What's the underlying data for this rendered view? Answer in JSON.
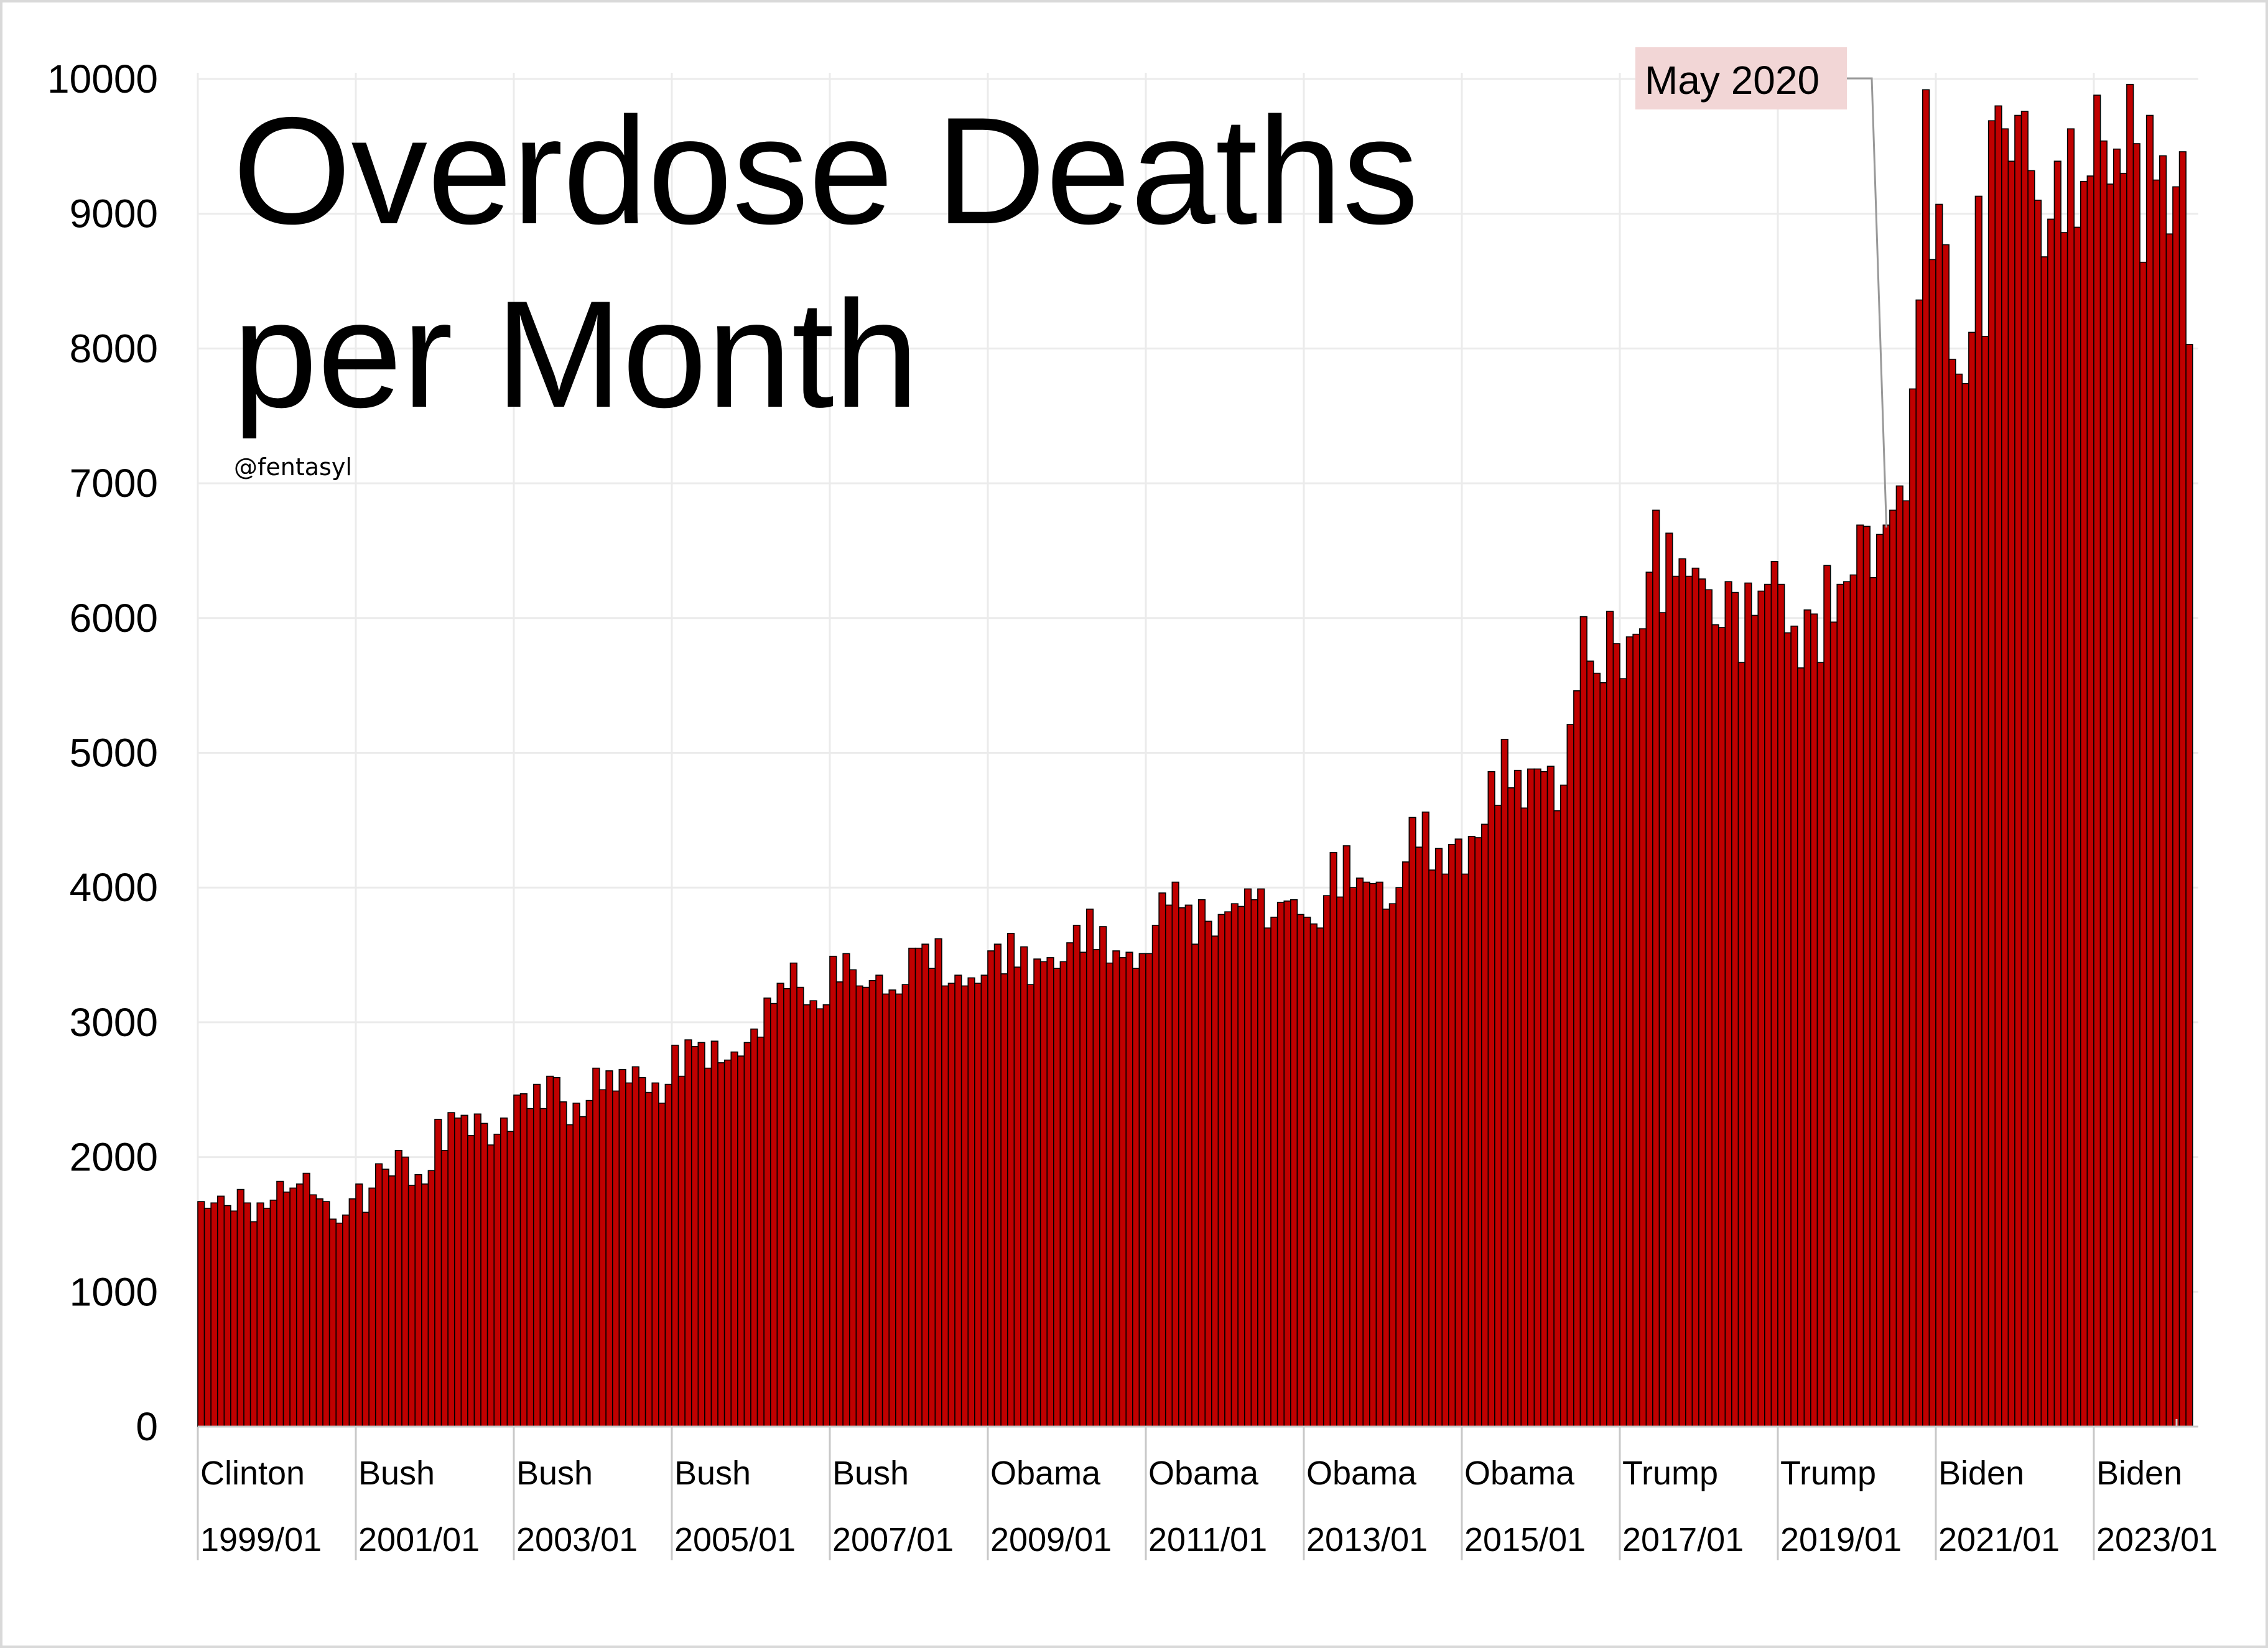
{
  "chart_data": {
    "type": "bar",
    "title_lines": [
      "Overdose Deaths",
      "per Month"
    ],
    "handle": "@fentasyl",
    "ylim": [
      0,
      10000
    ],
    "y_ticks": [
      "0",
      "1000",
      "2000",
      "3000",
      "4000",
      "5000",
      "6000",
      "7000",
      "8000",
      "9000",
      "10000"
    ],
    "grid": true,
    "x_start": "1999/01",
    "x_tick_labels": [
      "1999/01",
      "2001/01",
      "2003/01",
      "2005/01",
      "2007/01",
      "2009/01",
      "2011/01",
      "2013/01",
      "2015/01",
      "2017/01",
      "2019/01",
      "2021/01",
      "2023/01"
    ],
    "x_period_labels": [
      "Clinton",
      "Bush",
      "Bush",
      "Bush",
      "Bush",
      "Obama",
      "Obama",
      "Obama",
      "Obama",
      "Trump",
      "Trump",
      "Biden",
      "Biden"
    ],
    "annotation": {
      "label": "May 2020",
      "category": "2020/05"
    },
    "colors": {
      "bar": "#c00000",
      "bar_edge": "#000000",
      "grid": "#ebebeb",
      "annotation_bg": "#f2d6d6"
    },
    "values": [
      1670,
      1620,
      1660,
      1710,
      1640,
      1600,
      1760,
      1660,
      1520,
      1660,
      1620,
      1680,
      1820,
      1740,
      1770,
      1800,
      1880,
      1720,
      1690,
      1670,
      1540,
      1510,
      1570,
      1690,
      1800,
      1590,
      1770,
      1950,
      1910,
      1860,
      2050,
      2000,
      1790,
      1870,
      1800,
      1900,
      2280,
      2050,
      2330,
      2290,
      2310,
      2160,
      2320,
      2250,
      2090,
      2170,
      2290,
      2190,
      2460,
      2470,
      2360,
      2540,
      2360,
      2600,
      2590,
      2410,
      2240,
      2400,
      2300,
      2420,
      2660,
      2500,
      2640,
      2490,
      2650,
      2550,
      2670,
      2590,
      2480,
      2550,
      2400,
      2540,
      2830,
      2600,
      2870,
      2820,
      2850,
      2660,
      2860,
      2700,
      2720,
      2780,
      2750,
      2850,
      2950,
      2890,
      3180,
      3140,
      3290,
      3250,
      3440,
      3260,
      3130,
      3160,
      3100,
      3130,
      3490,
      3300,
      3510,
      3390,
      3270,
      3260,
      3310,
      3350,
      3210,
      3240,
      3210,
      3280,
      3550,
      3550,
      3580,
      3400,
      3620,
      3270,
      3290,
      3350,
      3270,
      3330,
      3290,
      3350,
      3530,
      3580,
      3360,
      3660,
      3410,
      3560,
      3280,
      3470,
      3450,
      3480,
      3400,
      3450,
      3590,
      3720,
      3520,
      3840,
      3540,
      3710,
      3440,
      3530,
      3480,
      3520,
      3400,
      3510,
      3510,
      3720,
      3960,
      3870,
      4040,
      3850,
      3870,
      3580,
      3910,
      3750,
      3640,
      3800,
      3820,
      3880,
      3860,
      3990,
      3910,
      3990,
      3700,
      3780,
      3890,
      3900,
      3910,
      3800,
      3780,
      3730,
      3700,
      3940,
      4260,
      3930,
      4310,
      4000,
      4070,
      4040,
      4030,
      4040,
      3840,
      3880,
      4000,
      4190,
      4520,
      4300,
      4560,
      4130,
      4290,
      4100,
      4320,
      4360,
      4100,
      4380,
      4370,
      4470,
      4860,
      4610,
      5100,
      4740,
      4870,
      4590,
      4880,
      4880,
      4860,
      4900,
      4570,
      4760,
      5210,
      5460,
      6010,
      5680,
      5590,
      5520,
      6050,
      5810,
      5550,
      5860,
      5880,
      5920,
      6340,
      6800,
      6040,
      6630,
      6310,
      6440,
      6310,
      6370,
      6290,
      6210,
      5950,
      5930,
      6270,
      6190,
      5670,
      6260,
      6020,
      6200,
      6250,
      6420,
      6250,
      5890,
      5940,
      5630,
      6060,
      6030,
      5670,
      6390,
      5970,
      6250,
      6270,
      6320,
      6690,
      6680,
      6300,
      6620,
      6690,
      6800,
      6980,
      6870,
      7700,
      8360,
      9920,
      8660,
      9070,
      8770,
      7920,
      7810,
      7740,
      8120,
      9130,
      8090,
      9690,
      9800,
      9630,
      9390,
      9730,
      9760,
      9320,
      9100,
      8680,
      8960,
      9390,
      8860,
      9630,
      8900,
      9240,
      9280,
      9880,
      9540,
      9220,
      9480,
      9300,
      9960,
      9520,
      8640,
      9730,
      9250,
      9430,
      8850,
      9200,
      9460,
      8030
    ]
  }
}
